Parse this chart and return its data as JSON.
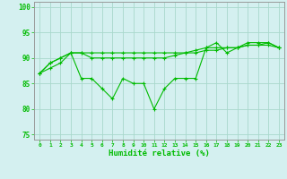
{
  "x": [
    0,
    1,
    2,
    3,
    4,
    5,
    6,
    7,
    8,
    9,
    10,
    11,
    12,
    13,
    14,
    15,
    16,
    17,
    18,
    19,
    20,
    21,
    22,
    23
  ],
  "y_jagged": [
    87,
    88,
    89,
    91,
    86,
    86,
    84,
    82,
    86,
    85,
    85,
    80,
    84,
    86,
    86,
    86,
    92,
    93,
    91,
    92,
    93,
    93,
    93,
    92
  ],
  "y_mid": [
    87,
    89,
    90,
    91,
    91,
    90,
    90,
    90,
    90,
    90,
    90,
    90,
    90,
    90.5,
    91,
    91,
    91.5,
    91.5,
    92,
    92,
    92.5,
    92.5,
    93,
    92
  ],
  "y_top": [
    87,
    89,
    90,
    91,
    91,
    91,
    91,
    91,
    91,
    91,
    91,
    91,
    91,
    91,
    91,
    91.5,
    92,
    92,
    92,
    92,
    92.5,
    92.5,
    92.5,
    92
  ],
  "line_color": "#00bb00",
  "background_color": "#d4f0f0",
  "grid_color": "#a8d8cc",
  "xlabel": "Humidité relative (%)",
  "ylim": [
    74,
    101
  ],
  "yticks": [
    75,
    80,
    85,
    90,
    95,
    100
  ],
  "xlim": [
    -0.5,
    23.5
  ]
}
